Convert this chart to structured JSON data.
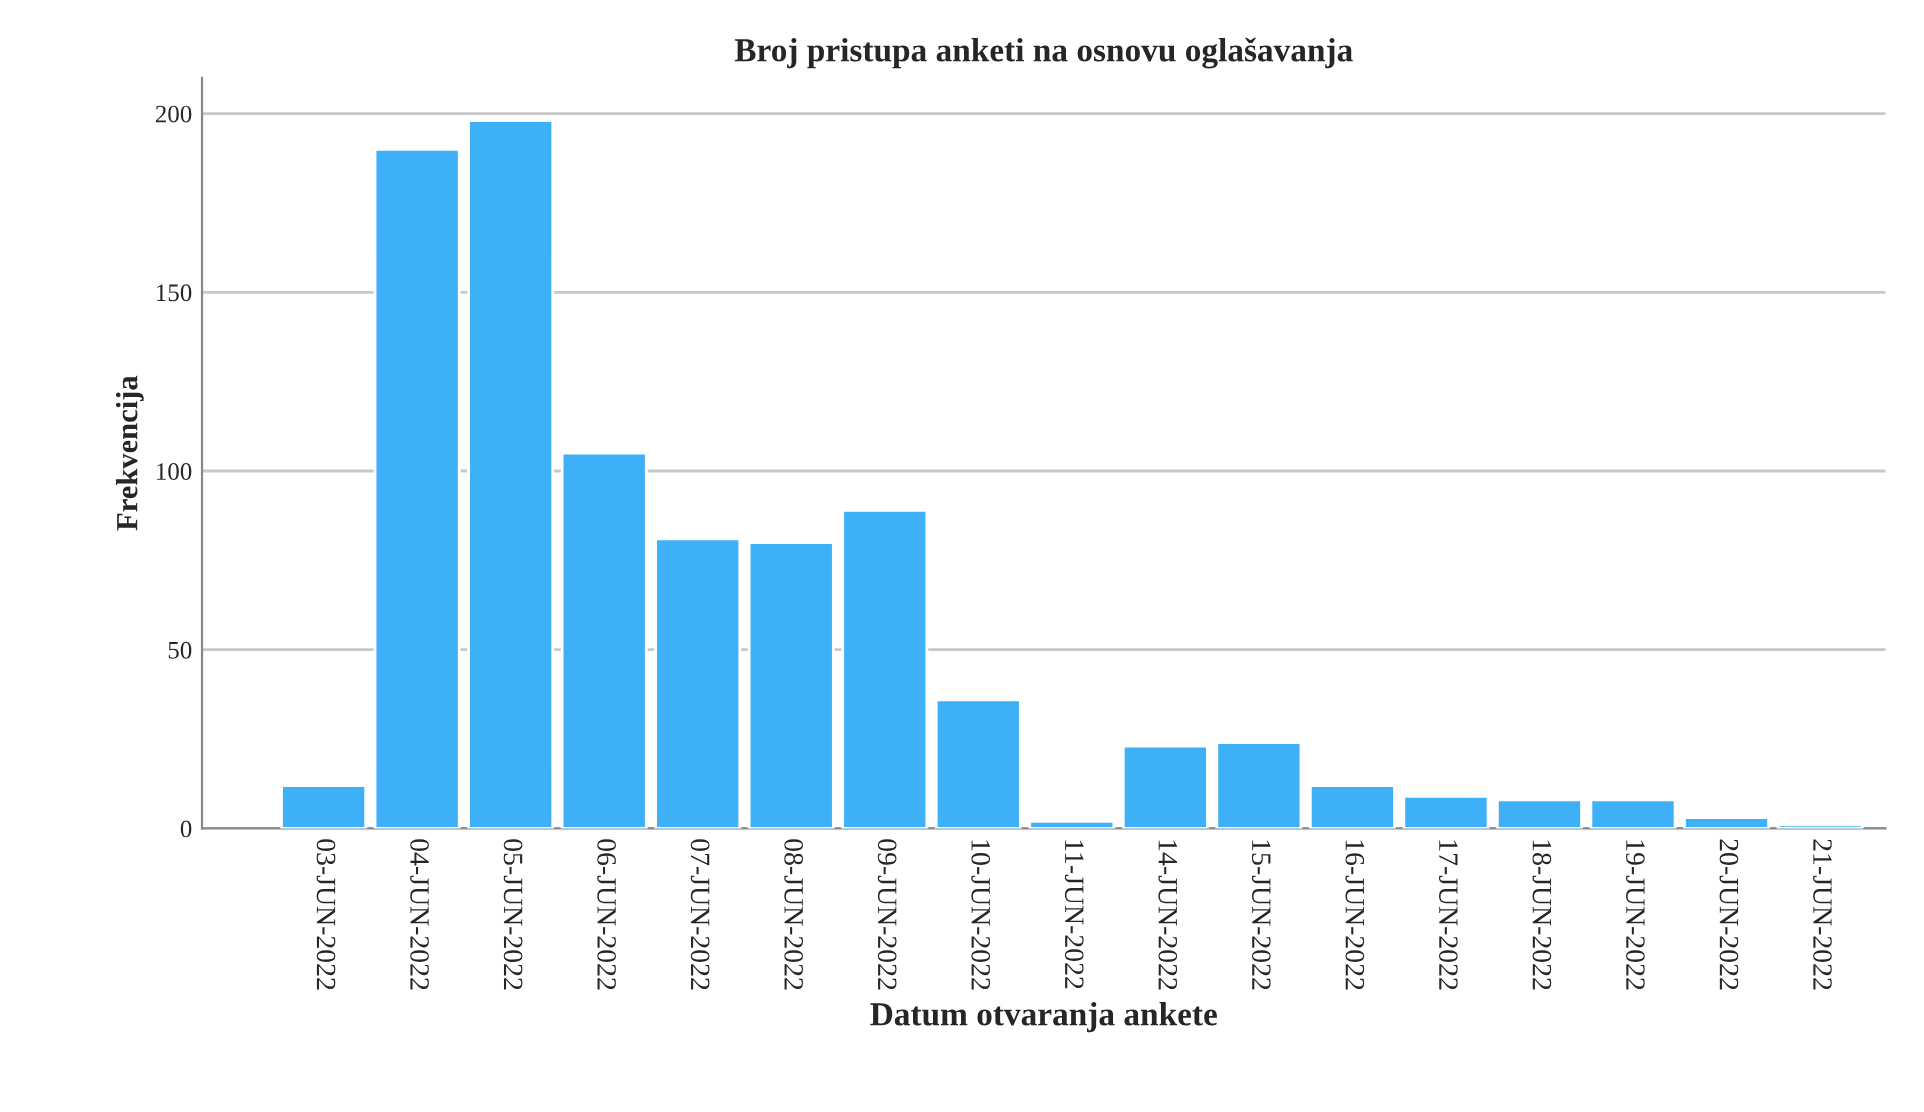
{
  "chart_data": {
    "type": "bar",
    "title": "Broj pristupa anketi na osnovu oglašavanja",
    "xlabel": "Datum otvaranja ankete",
    "ylabel": "Frekvencija",
    "categories": [
      "03-JUN-2022",
      "04-JUN-2022",
      "05-JUN-2022",
      "06-JUN-2022",
      "07-JUN-2022",
      "08-JUN-2022",
      "09-JUN-2022",
      "10-JUN-2022",
      "11-JUN-2022",
      "14-JUN-2022",
      "15-JUN-2022",
      "16-JUN-2022",
      "17-JUN-2022",
      "18-JUN-2022",
      "19-JUN-2022",
      "20-JUN-2022",
      "21-JUN-2022"
    ],
    "values": [
      12,
      190,
      198,
      105,
      81,
      80,
      89,
      36,
      2,
      23,
      24,
      12,
      9,
      8,
      8,
      3,
      1
    ],
    "color": "#3eb0f7",
    "ylim": [
      0,
      210
    ],
    "yticks": [
      0,
      50,
      100,
      150,
      200
    ],
    "grid": "y"
  }
}
